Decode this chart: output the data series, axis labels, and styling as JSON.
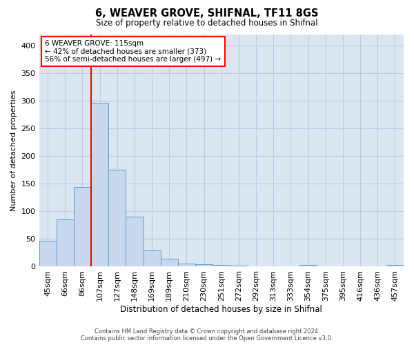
{
  "title": "6, WEAVER GROVE, SHIFNAL, TF11 8GS",
  "subtitle": "Size of property relative to detached houses in Shifnal",
  "xlabel": "Distribution of detached houses by size in Shifnal",
  "ylabel": "Number of detached properties",
  "bar_labels": [
    "45sqm",
    "66sqm",
    "86sqm",
    "107sqm",
    "127sqm",
    "148sqm",
    "169sqm",
    "189sqm",
    "210sqm",
    "230sqm",
    "251sqm",
    "272sqm",
    "292sqm",
    "313sqm",
    "333sqm",
    "354sqm",
    "375sqm",
    "395sqm",
    "416sqm",
    "436sqm",
    "457sqm"
  ],
  "bar_values": [
    47,
    86,
    144,
    297,
    175,
    90,
    29,
    14,
    6,
    4,
    3,
    2,
    0,
    0,
    0,
    3,
    0,
    0,
    0,
    0,
    3
  ],
  "bar_color": "#c9d9ed",
  "bar_edge_color": "#5b9bd5",
  "annotation_text": "6 WEAVER GROVE: 115sqm\n← 42% of detached houses are smaller (373)\n56% of semi-detached houses are larger (497) →",
  "annotation_box_color": "white",
  "annotation_box_edge_color": "red",
  "vline_color": "red",
  "vline_x_index": 2.5,
  "ylim": [
    0,
    420
  ],
  "yticks": [
    0,
    50,
    100,
    150,
    200,
    250,
    300,
    350,
    400
  ],
  "grid_color": "#b8cce4",
  "background_color": "#dce6f1",
  "footer_line1": "Contains HM Land Registry data © Crown copyright and database right 2024.",
  "footer_line2": "Contains public sector information licensed under the Open Government Licence v3.0."
}
